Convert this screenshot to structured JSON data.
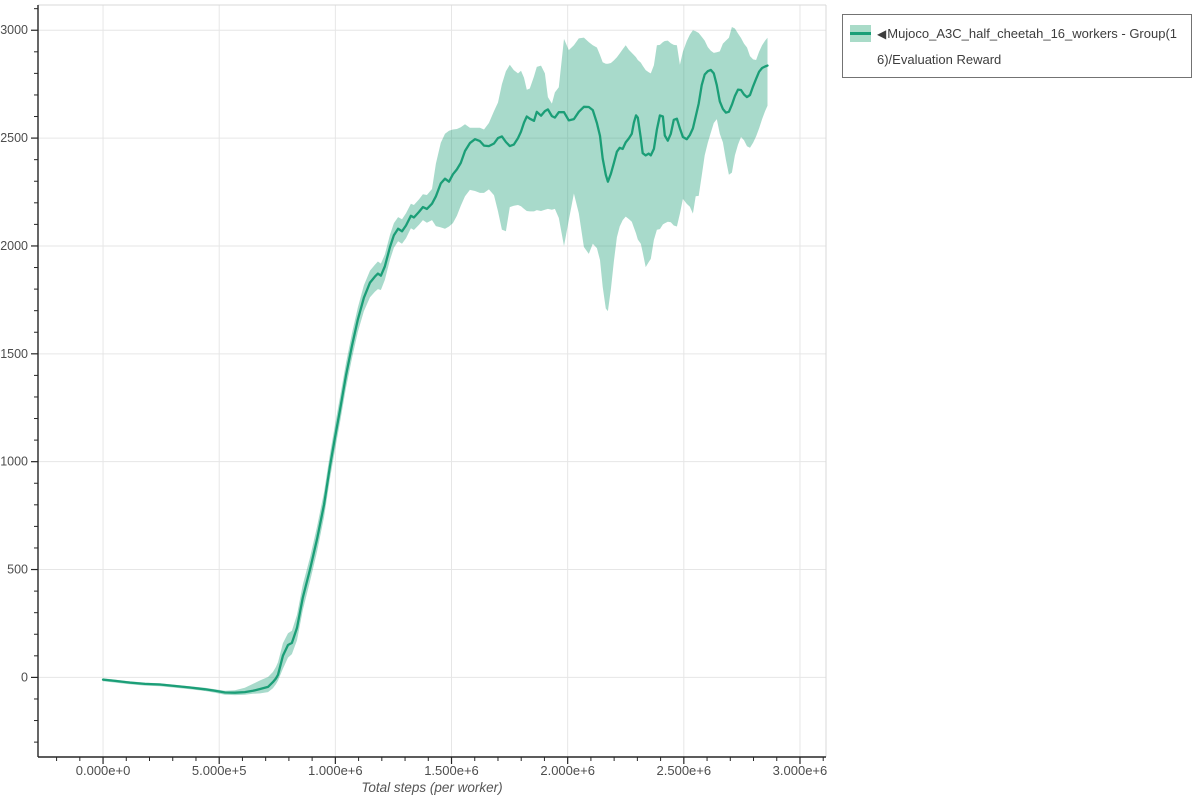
{
  "page": {
    "background": "#ffffff"
  },
  "legend": {
    "marker": "◀",
    "label": "Mujoco_A3C_half_cheetah_16_workers - Group(16)/Evaluation Reward",
    "border_color": "#737373",
    "text_color": "#3d3d3d"
  },
  "axes": {
    "x_title": "Total steps (per worker)",
    "x_ticks": [
      {
        "value": 0,
        "label": "0.000e+0"
      },
      {
        "value": 500000,
        "label": "5.000e+5"
      },
      {
        "value": 1000000,
        "label": "1.000e+6"
      },
      {
        "value": 1500000,
        "label": "1.500e+6"
      },
      {
        "value": 2000000,
        "label": "2.000e+6"
      },
      {
        "value": 2500000,
        "label": "2.500e+6"
      },
      {
        "value": 3000000,
        "label": "3.000e+6"
      }
    ],
    "y_ticks": [
      {
        "value": 0,
        "label": "0"
      },
      {
        "value": 500,
        "label": "500"
      },
      {
        "value": 1000,
        "label": "1000"
      },
      {
        "value": 1500,
        "label": "1500"
      },
      {
        "value": 2000,
        "label": "2000"
      },
      {
        "value": 2500,
        "label": "2500"
      },
      {
        "value": 3000,
        "label": "3000"
      }
    ],
    "x_minor_step": 100000,
    "y_minor_step": 100,
    "tick_label_color": "#4d4d4d",
    "grid_color": "#e6e6e6",
    "spine_color": "#262626",
    "light_spine_color": "#d9d9d9"
  },
  "chart_data": {
    "type": "line",
    "title": "",
    "xlabel": "Total steps (per worker)",
    "ylabel": "",
    "x_range": [
      -280000,
      3112000
    ],
    "y_range": [
      -369,
      3117
    ],
    "grid": true,
    "legend_position": "top-right",
    "series": [
      {
        "name": "Mujoco_A3C_half_cheetah_16_workers - Group(16)/Evaluation Reward",
        "color": "#1b9e77",
        "band_color": "#1b9e77",
        "band_opacity": 0.38,
        "points": [
          [
            0,
            -10,
            -18,
            -4
          ],
          [
            52000,
            -16,
            -24,
            -10
          ],
          [
            116000,
            -24,
            -32,
            -18
          ],
          [
            180000,
            -30,
            -38,
            -24
          ],
          [
            245000,
            -33,
            -41,
            -27
          ],
          [
            310000,
            -40,
            -48,
            -34
          ],
          [
            374000,
            -47,
            -55,
            -41
          ],
          [
            439000,
            -55,
            -63,
            -48
          ],
          [
            482000,
            -62,
            -71,
            -55
          ],
          [
            525000,
            -70,
            -80,
            -62
          ],
          [
            568000,
            -71,
            -82,
            -60
          ],
          [
            610000,
            -68,
            -80,
            -48
          ],
          [
            645000,
            -62,
            -76,
            -30
          ],
          [
            676000,
            -54,
            -74,
            -14
          ],
          [
            710000,
            -44,
            -68,
            2
          ],
          [
            731000,
            -22,
            -50,
            25
          ],
          [
            744000,
            -5,
            -32,
            48
          ],
          [
            753000,
            12,
            -15,
            70
          ],
          [
            774000,
            100,
            40,
            158
          ],
          [
            796000,
            150,
            92,
            205
          ],
          [
            813000,
            160,
            108,
            216
          ],
          [
            835000,
            230,
            172,
            290
          ],
          [
            860000,
            370,
            312,
            430
          ],
          [
            891000,
            500,
            445,
            556
          ],
          [
            921000,
            640,
            582,
            698
          ],
          [
            951000,
            800,
            742,
            858
          ],
          [
            977000,
            980,
            922,
            1038
          ],
          [
            998000,
            1110,
            1052,
            1168
          ],
          [
            1020000,
            1240,
            1182,
            1300
          ],
          [
            1046000,
            1400,
            1342,
            1458
          ],
          [
            1072000,
            1540,
            1482,
            1598
          ],
          [
            1097000,
            1660,
            1602,
            1716
          ],
          [
            1123000,
            1760,
            1698,
            1818
          ],
          [
            1149000,
            1830,
            1762,
            1886
          ],
          [
            1170000,
            1858,
            1788,
            1913
          ],
          [
            1183000,
            1872,
            1800,
            1928
          ],
          [
            1196000,
            1862,
            1796,
            1918
          ],
          [
            1213000,
            1905,
            1842,
            1960
          ],
          [
            1235000,
            1995,
            1936,
            2052
          ],
          [
            1252000,
            2050,
            1992,
            2106
          ],
          [
            1270000,
            2080,
            2022,
            2134
          ],
          [
            1287000,
            2068,
            2010,
            2124
          ],
          [
            1304000,
            2095,
            2036,
            2152
          ],
          [
            1325000,
            2140,
            2082,
            2196
          ],
          [
            1338000,
            2132,
            2074,
            2190
          ],
          [
            1360000,
            2158,
            2098,
            2216
          ],
          [
            1377000,
            2180,
            2120,
            2240
          ],
          [
            1394000,
            2172,
            2108,
            2236
          ],
          [
            1416000,
            2196,
            2120,
            2264
          ],
          [
            1433000,
            2230,
            2092,
            2382
          ],
          [
            1454000,
            2290,
            2086,
            2478
          ],
          [
            1472000,
            2312,
            2080,
            2520
          ],
          [
            1489000,
            2298,
            2090,
            2534
          ],
          [
            1506000,
            2332,
            2106,
            2540
          ],
          [
            1523000,
            2355,
            2140,
            2542
          ],
          [
            1540000,
            2385,
            2186,
            2550
          ],
          [
            1558000,
            2440,
            2230,
            2564
          ],
          [
            1579000,
            2477,
            2260,
            2548
          ],
          [
            1601000,
            2495,
            2255,
            2548
          ],
          [
            1622000,
            2486,
            2246,
            2548
          ],
          [
            1640000,
            2465,
            2246,
            2540
          ],
          [
            1661000,
            2463,
            2262,
            2570
          ],
          [
            1683000,
            2475,
            2235,
            2625
          ],
          [
            1700000,
            2500,
            2160,
            2665
          ],
          [
            1717000,
            2508,
            2076,
            2750
          ],
          [
            1734000,
            2482,
            2068,
            2810
          ],
          [
            1751000,
            2463,
            2180,
            2840
          ],
          [
            1768000,
            2470,
            2186,
            2815
          ],
          [
            1786000,
            2500,
            2190,
            2800
          ],
          [
            1799000,
            2530,
            2184,
            2812
          ],
          [
            1812000,
            2572,
            2172,
            2780
          ],
          [
            1824000,
            2600,
            2162,
            2724
          ],
          [
            1837000,
            2590,
            2160,
            2730
          ],
          [
            1855000,
            2580,
            2160,
            2786
          ],
          [
            1867000,
            2622,
            2166,
            2830
          ],
          [
            1885000,
            2604,
            2162,
            2836
          ],
          [
            1902000,
            2625,
            2168,
            2800
          ],
          [
            1915000,
            2633,
            2172,
            2690
          ],
          [
            1932000,
            2602,
            2168,
            2660
          ],
          [
            1945000,
            2595,
            2172,
            2712
          ],
          [
            1962000,
            2620,
            2130,
            2736
          ],
          [
            1984000,
            2620,
            2000,
            2960
          ],
          [
            2005000,
            2582,
            2120,
            2908
          ],
          [
            2027000,
            2588,
            2243,
            2930
          ],
          [
            2048000,
            2622,
            2152,
            2962
          ],
          [
            2070000,
            2645,
            1995,
            2966
          ],
          [
            2091000,
            2644,
            1963,
            2945
          ],
          [
            2108000,
            2630,
            2010,
            2930
          ],
          [
            2126000,
            2570,
            1990,
            2920
          ],
          [
            2139000,
            2510,
            1935,
            2885
          ],
          [
            2151000,
            2405,
            1810,
            2852
          ],
          [
            2164000,
            2330,
            1710,
            2845
          ],
          [
            2173000,
            2298,
            1698,
            2845
          ],
          [
            2186000,
            2335,
            1800,
            2848
          ],
          [
            2199000,
            2385,
            1930,
            2860
          ],
          [
            2212000,
            2437,
            2040,
            2875
          ],
          [
            2224000,
            2455,
            2090,
            2892
          ],
          [
            2237000,
            2450,
            2120,
            2912
          ],
          [
            2250000,
            2480,
            2136,
            2930
          ],
          [
            2263000,
            2498,
            2125,
            2910
          ],
          [
            2276000,
            2520,
            2112,
            2895
          ],
          [
            2285000,
            2572,
            2085,
            2885
          ],
          [
            2294000,
            2605,
            2058,
            2875
          ],
          [
            2302000,
            2595,
            2030,
            2862
          ],
          [
            2315000,
            2500,
            2010,
            2850
          ],
          [
            2323000,
            2430,
            1970,
            2835
          ],
          [
            2336000,
            2420,
            1902,
            2815
          ],
          [
            2349000,
            2428,
            1925,
            2805
          ],
          [
            2358000,
            2420,
            1940,
            2800
          ],
          [
            2371000,
            2450,
            2028,
            2838
          ],
          [
            2384000,
            2540,
            2075,
            2930
          ],
          [
            2397000,
            2605,
            2078,
            2932
          ],
          [
            2410000,
            2600,
            2100,
            2945
          ],
          [
            2418000,
            2512,
            2105,
            2950
          ],
          [
            2431000,
            2488,
            2112,
            2952
          ],
          [
            2444000,
            2520,
            2110,
            2940
          ],
          [
            2457000,
            2585,
            2095,
            2932
          ],
          [
            2470000,
            2590,
            2090,
            2930
          ],
          [
            2483000,
            2545,
            2150,
            2840
          ],
          [
            2496000,
            2505,
            2218,
            2900
          ],
          [
            2513000,
            2495,
            2195,
            2950
          ],
          [
            2526000,
            2515,
            2182,
            2980
          ],
          [
            2539000,
            2545,
            2150,
            3000
          ],
          [
            2551000,
            2600,
            2230,
            2995
          ],
          [
            2564000,
            2660,
            2232,
            2987
          ],
          [
            2577000,
            2745,
            2325,
            2970
          ],
          [
            2590000,
            2795,
            2420,
            2952
          ],
          [
            2603000,
            2810,
            2478,
            2922
          ],
          [
            2616000,
            2816,
            2525,
            2905
          ],
          [
            2629000,
            2800,
            2570,
            2895
          ],
          [
            2642000,
            2745,
            2588,
            2898
          ],
          [
            2655000,
            2670,
            2520,
            2902
          ],
          [
            2668000,
            2635,
            2480,
            2938
          ],
          [
            2681000,
            2618,
            2400,
            2952
          ],
          [
            2694000,
            2622,
            2330,
            2965
          ],
          [
            2707000,
            2655,
            2340,
            3015
          ],
          [
            2720000,
            2695,
            2420,
            3008
          ],
          [
            2733000,
            2725,
            2470,
            2985
          ],
          [
            2746000,
            2723,
            2505,
            2964
          ],
          [
            2759000,
            2702,
            2490,
            2938
          ],
          [
            2772000,
            2690,
            2462,
            2920
          ],
          [
            2785000,
            2700,
            2455,
            2880
          ],
          [
            2798000,
            2740,
            2478,
            2865
          ],
          [
            2811000,
            2775,
            2508,
            2862
          ],
          [
            2824000,
            2808,
            2545,
            2900
          ],
          [
            2837000,
            2825,
            2588,
            2930
          ],
          [
            2850000,
            2832,
            2625,
            2952
          ],
          [
            2860000,
            2836,
            2650,
            2965
          ]
        ]
      }
    ]
  }
}
